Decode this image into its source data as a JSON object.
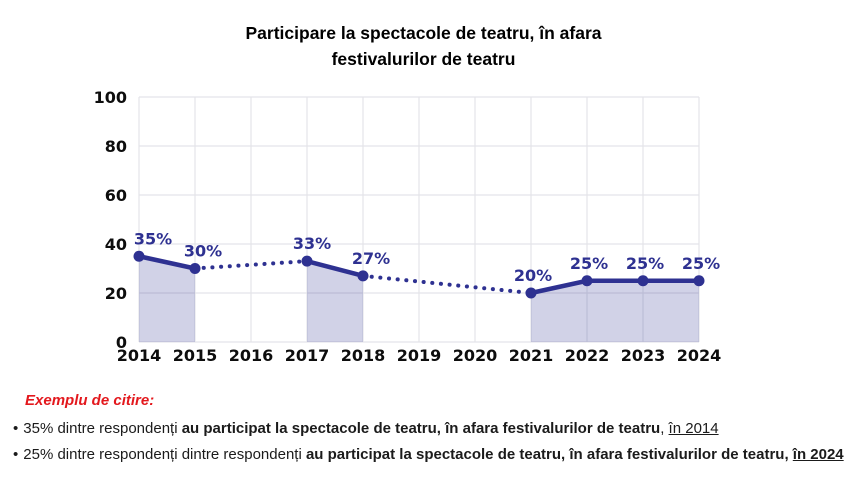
{
  "title": {
    "line1": "Participare la spectacole de teatru, în afara",
    "line2": "festivalurilor de teatru"
  },
  "chart_data": {
    "type": "line",
    "title": "Participare la spectacole de teatru, în afara festivalurilor de teatru",
    "x": [
      2014,
      2015,
      2016,
      2017,
      2018,
      2019,
      2020,
      2021,
      2022,
      2023,
      2024
    ],
    "y_ticks": [
      0,
      20,
      40,
      60,
      80,
      100
    ],
    "ylim": [
      0,
      100
    ],
    "unit": "%",
    "grid": true,
    "legend": "none",
    "points": [
      {
        "x": 2014,
        "y": 35
      },
      {
        "x": 2015,
        "y": 30
      },
      {
        "x": 2017,
        "y": 33
      },
      {
        "x": 2018,
        "y": 27
      },
      {
        "x": 2021,
        "y": 20
      },
      {
        "x": 2022,
        "y": 25
      },
      {
        "x": 2023,
        "y": 25
      },
      {
        "x": 2024,
        "y": 25
      }
    ],
    "segments": [
      {
        "style": "solid",
        "points": [
          2014,
          2015
        ]
      },
      {
        "style": "dotted",
        "points": [
          2015,
          2017
        ]
      },
      {
        "style": "solid",
        "points": [
          2017,
          2018
        ]
      },
      {
        "style": "dotted",
        "points": [
          2018,
          2021
        ]
      },
      {
        "style": "solid",
        "points": [
          2021,
          2022,
          2023,
          2024
        ]
      }
    ],
    "filled_regions": [
      [
        2014,
        2015
      ],
      [
        2017,
        2018
      ],
      [
        2021,
        2024
      ]
    ],
    "colors": {
      "line": "#2e3191",
      "marker": "#2e3191",
      "data_label": "#2e3191",
      "fill": "rgba(46,49,145,0.22)",
      "grid": "#e4e4e9",
      "axis_text": "#0d0d0d",
      "title": "#000000",
      "note_heading": "#e3181d",
      "note_text": "#1b1b1b"
    }
  },
  "notes": {
    "heading": "Exemplu de citire:",
    "bullets": [
      {
        "marker": "•",
        "parts": [
          {
            "text": "35% dintre respondenți ",
            "bold": false,
            "underline": false
          },
          {
            "text": "au participat la spectacole de teatru, în afara festivalurilor de teatru",
            "bold": true,
            "underline": false
          },
          {
            "text": ", ",
            "bold": false,
            "underline": false
          },
          {
            "text": "în 2014",
            "bold": false,
            "underline": true
          }
        ]
      },
      {
        "marker": "•",
        "parts": [
          {
            "text": "25% dintre respondenți dintre respondenți ",
            "bold": false,
            "underline": false
          },
          {
            "text": "au participat la spectacole de teatru, în afara festivalurilor de teatru, ",
            "bold": true,
            "underline": false
          },
          {
            "text": "în 2024",
            "bold": true,
            "underline": true
          }
        ]
      }
    ]
  }
}
